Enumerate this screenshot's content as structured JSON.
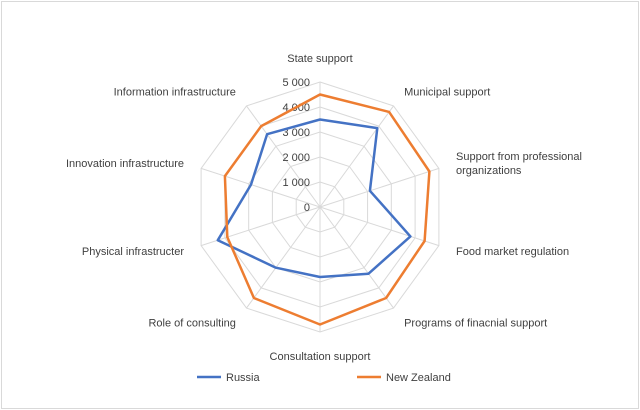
{
  "chart_data": {
    "type": "radar",
    "title": "",
    "categories": [
      "State support",
      "Municipal support",
      "Support from professional organizations",
      "Food market regulation",
      "Programs of finacnial support",
      "Consultation support",
      "Role of consulting",
      "Physical infrastructer",
      "Innovation infrastructure",
      "Information infrastructure"
    ],
    "category_label_lines": [
      [
        "State support"
      ],
      [
        "Municipal support"
      ],
      [
        "Support from professional",
        "organizations"
      ],
      [
        "Food market regulation"
      ],
      [
        "Programs of finacnial support"
      ],
      [
        "Consultation support"
      ],
      [
        "Role of consulting"
      ],
      [
        "Physical infrastructer"
      ],
      [
        "Innovation infrastructure"
      ],
      [
        "Information infrastructure"
      ]
    ],
    "ticks": [
      0,
      1000,
      2000,
      3000,
      4000,
      5000
    ],
    "tick_labels": [
      "0",
      "1 000",
      "2 000",
      "3 000",
      "4 000",
      "5 000"
    ],
    "rlim": [
      0,
      5000
    ],
    "grid": true,
    "legend_position": "bottom",
    "series": [
      {
        "name": "Russia",
        "color": "#4472c4",
        "values": [
          3500,
          3900,
          2100,
          3800,
          3300,
          2800,
          3000,
          4300,
          2900,
          3600
        ]
      },
      {
        "name": "New Zealand",
        "color": "#ed7d31",
        "values": [
          4500,
          4700,
          4600,
          4400,
          4500,
          4700,
          4500,
          3900,
          4000,
          4000
        ]
      }
    ]
  }
}
